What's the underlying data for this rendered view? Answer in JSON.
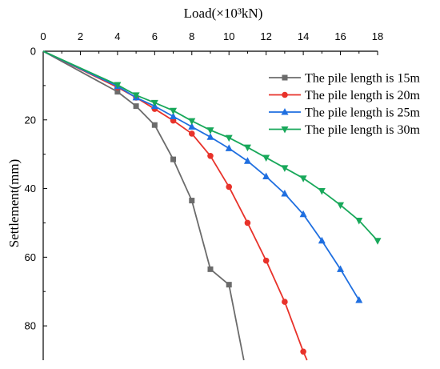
{
  "chart_data": {
    "type": "line",
    "xlabel": "Load(×10³kN)",
    "ylabel": "Settlement(mm)",
    "xlim": [
      0,
      18
    ],
    "ylim": [
      0,
      90
    ],
    "y_inverted": true,
    "x_axis_position": "top",
    "x_ticks": [
      0,
      2,
      4,
      6,
      8,
      10,
      12,
      14,
      16,
      18
    ],
    "y_ticks": [
      0,
      20,
      40,
      60,
      80
    ],
    "grid": false,
    "legend_position": "top-right",
    "series": [
      {
        "name": "The pile length is 15m",
        "color": "#6b6b6b",
        "marker": "square",
        "x": [
          0,
          4,
          5,
          6,
          7,
          8,
          9,
          10,
          10.8
        ],
        "y": [
          0,
          11.8,
          16,
          21.5,
          31.5,
          43.5,
          63.5,
          68,
          90
        ]
      },
      {
        "name": "The pile length is 20m",
        "color": "#e8322a",
        "marker": "circle",
        "x": [
          0,
          4,
          5,
          6,
          7,
          8,
          9,
          10,
          11,
          12,
          13,
          14,
          14.2
        ],
        "y": [
          0,
          10.5,
          13.5,
          16.8,
          20.2,
          24,
          30.5,
          39.5,
          50,
          61,
          73,
          87.5,
          90
        ]
      },
      {
        "name": "The pile length is 25m",
        "color": "#1f6fe0",
        "marker": "triangle-up",
        "x": [
          0,
          4,
          5,
          6,
          7,
          8,
          9,
          10,
          11,
          12,
          13,
          14,
          15,
          16,
          17
        ],
        "y": [
          0,
          10.2,
          13.5,
          16,
          19,
          22,
          25,
          28.3,
          32,
          36.5,
          41.5,
          47.5,
          55.2,
          63.5,
          72.5
        ]
      },
      {
        "name": "The pile length is 30m",
        "color": "#18a85a",
        "marker": "triangle-down",
        "x": [
          0,
          4,
          5,
          6,
          7,
          8,
          9,
          10,
          11,
          12,
          13,
          14,
          15,
          16,
          17,
          18
        ],
        "y": [
          0,
          9.8,
          12.8,
          15,
          17.3,
          20.3,
          23,
          25.2,
          28,
          31,
          34,
          37,
          40.7,
          44.8,
          49.3,
          55.2
        ]
      }
    ]
  }
}
